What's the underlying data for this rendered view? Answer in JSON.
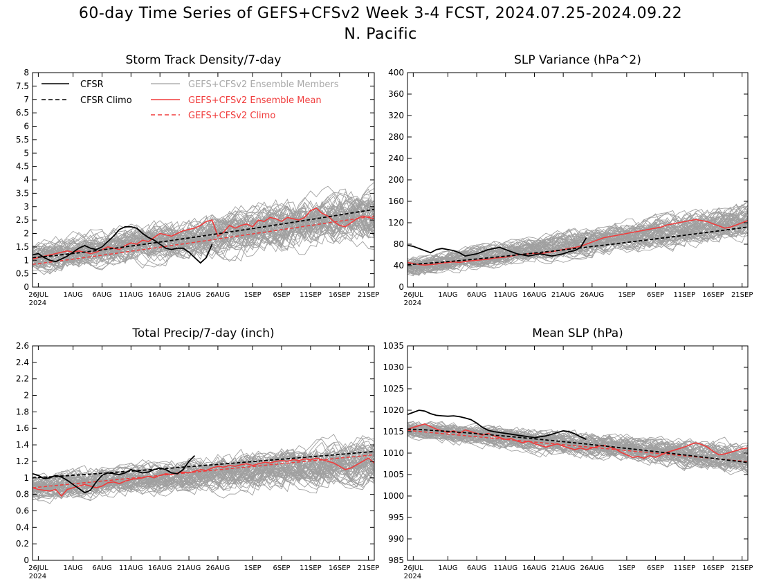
{
  "figure": {
    "title_line1": "60-day Time Series of GEFS+CFSv2 Week 3-4 FCST, 2024.07.25-2024.09.22",
    "title_line2": "N. Pacific"
  },
  "colors": {
    "cfsr": "#000000",
    "ensemble_members": "#a0a0a0",
    "ensemble_mean": "#f03c3c",
    "gefs_climo": "#f03c3c"
  },
  "legend": {
    "cfsr": "CFSR",
    "cfsr_climo": "CFSR Climo",
    "members": "GEFS+CFSv2 Ensemble Members",
    "mean": "GEFS+CFSv2 Ensemble Mean",
    "gefs_climo": "GEFS+CFSv2 Climo"
  },
  "x_axis": {
    "day_range": [
      0,
      59
    ],
    "ticks": [
      {
        "day": 1,
        "label": "26JUL",
        "sublabel": "2024"
      },
      {
        "day": 7,
        "label": "1AUG"
      },
      {
        "day": 12,
        "label": "6AUG"
      },
      {
        "day": 17,
        "label": "11AUG"
      },
      {
        "day": 22,
        "label": "16AUG"
      },
      {
        "day": 27,
        "label": "21AUG"
      },
      {
        "day": 32,
        "label": "26AUG"
      },
      {
        "day": 38,
        "label": "1SEP"
      },
      {
        "day": 43,
        "label": "6SEP"
      },
      {
        "day": 48,
        "label": "11SEP"
      },
      {
        "day": 53,
        "label": "16SEP"
      },
      {
        "day": 58,
        "label": "21SEP"
      }
    ]
  },
  "chart_data": [
    {
      "type": "line",
      "title": "Storm Track Density/7-day",
      "ylim": [
        0,
        8
      ],
      "yticks": [
        "0",
        "0.5",
        "1",
        "1.5",
        "2",
        "2.5",
        "3",
        "3.5",
        "4",
        "4.5",
        "5",
        "5.5",
        "6",
        "6.5",
        "7",
        "7.5",
        "8"
      ],
      "show_legend": true,
      "member_center": {
        "start": 1.1,
        "end": 2.7
      },
      "member_spread": 1.0,
      "cfsr": [
        1.2,
        1.25,
        1.1,
        1.0,
        0.95,
        1.05,
        1.15,
        1.3,
        1.45,
        1.55,
        1.45,
        1.4,
        1.5,
        1.7,
        1.9,
        2.15,
        2.25,
        2.25,
        2.2,
        2.0,
        1.85,
        1.75,
        1.6,
        1.45,
        1.4,
        1.45,
        1.45,
        1.3,
        1.1,
        0.9,
        1.1,
        1.6
      ],
      "cfsr_climo": {
        "start": 1.1,
        "end": 2.9,
        "power": 1.15
      },
      "ens_mean": [
        1.05,
        1.1,
        1.15,
        1.2,
        1.25,
        1.3,
        1.35,
        1.3,
        1.35,
        1.3,
        1.25,
        1.3,
        1.4,
        1.5,
        1.45,
        1.4,
        1.55,
        1.65,
        1.6,
        1.75,
        1.7,
        1.85,
        2.0,
        1.95,
        1.9,
        2.0,
        2.1,
        2.15,
        2.2,
        2.3,
        2.45,
        2.5,
        1.9,
        2.05,
        2.3,
        2.2,
        2.3,
        2.35,
        2.25,
        2.5,
        2.45,
        2.6,
        2.55,
        2.45,
        2.6,
        2.55,
        2.5,
        2.6,
        2.85,
        2.95,
        2.75,
        2.65,
        2.45,
        2.3,
        2.25,
        2.4,
        2.55,
        2.65,
        2.6,
        2.55
      ],
      "gefs_climo": {
        "start": 0.85,
        "end": 2.65,
        "power": 1.05
      }
    },
    {
      "type": "line",
      "title": "SLP Variance (hPa^2)",
      "ylim": [
        0,
        400
      ],
      "yticks": [
        "0",
        "40",
        "80",
        "120",
        "160",
        "200",
        "240",
        "280",
        "320",
        "360",
        "400"
      ],
      "show_legend": false,
      "member_center": {
        "start": 38,
        "end": 125
      },
      "member_spread": 30,
      "cfsr": [
        78,
        76,
        72,
        68,
        64,
        70,
        72,
        70,
        68,
        64,
        58,
        60,
        62,
        66,
        70,
        72,
        74,
        70,
        66,
        62,
        60,
        58,
        60,
        62,
        60,
        58,
        60,
        62,
        66,
        68,
        74,
        92
      ],
      "cfsr_climo": {
        "start": 42,
        "end": 112,
        "power": 1.2
      },
      "ens_mean": [
        46,
        44,
        42,
        41,
        42,
        43,
        45,
        46,
        47,
        46,
        48,
        49,
        50,
        51,
        52,
        54,
        55,
        56,
        58,
        60,
        61,
        62,
        63,
        62,
        64,
        66,
        68,
        70,
        72,
        74,
        76,
        80,
        84,
        88,
        92,
        94,
        96,
        98,
        100,
        102,
        104,
        106,
        108,
        110,
        112,
        116,
        118,
        120,
        122,
        124,
        126,
        124,
        122,
        118,
        114,
        110,
        112,
        116,
        120,
        124
      ]
    },
    {
      "type": "line",
      "title": "Total Precip/7-day (inch)",
      "ylim": [
        0,
        2.6
      ],
      "yticks": [
        "0",
        "0.2",
        "0.4",
        "0.6",
        "0.8",
        "1",
        "1.2",
        "1.4",
        "1.6",
        "1.8",
        "2",
        "2.2",
        "2.4",
        "2.6"
      ],
      "show_legend": false,
      "member_center": {
        "start": 0.88,
        "end": 1.22
      },
      "member_spread": 0.26,
      "cfsr": [
        1.05,
        1.03,
        0.99,
        1.0,
        1.03,
        1.01,
        0.97,
        0.92,
        0.87,
        0.82,
        0.85,
        0.95,
        1.03,
        1.06,
        1.05,
        1.04,
        1.06,
        1.1,
        1.08,
        1.06,
        1.07,
        1.1,
        1.12,
        1.1,
        1.06,
        1.05,
        1.1,
        1.2,
        1.27
      ],
      "cfsr_climo": {
        "start": 1.0,
        "end": 1.32,
        "power": 1.1
      },
      "ens_mean": [
        0.88,
        0.86,
        0.85,
        0.84,
        0.86,
        0.78,
        0.86,
        0.88,
        0.9,
        0.92,
        0.9,
        0.88,
        0.9,
        0.94,
        0.95,
        0.93,
        0.96,
        0.98,
        0.99,
        1.0,
        1.02,
        1.0,
        1.03,
        1.05,
        1.04,
        1.06,
        1.07,
        1.06,
        1.08,
        1.1,
        1.09,
        1.12,
        1.14,
        1.13,
        1.15,
        1.14,
        1.16,
        1.17,
        1.15,
        1.17,
        1.19,
        1.18,
        1.2,
        1.21,
        1.2,
        1.22,
        1.21,
        1.23,
        1.22,
        1.24,
        1.22,
        1.2,
        1.18,
        1.14,
        1.1,
        1.12,
        1.16,
        1.2,
        1.24,
        1.18
      ],
      "gefs_climo": {
        "start": 0.88,
        "end": 1.28,
        "power": 1.0
      }
    },
    {
      "type": "line",
      "title": "Mean SLP (hPa)",
      "ylim": [
        985,
        1035
      ],
      "yticks": [
        "985",
        "990",
        "995",
        "1000",
        "1005",
        "1010",
        "1015",
        "1020",
        "1025",
        "1030",
        "1035"
      ],
      "show_legend": false,
      "member_center": {
        "start": 1015.5,
        "end": 1008.5
      },
      "member_spread": 3.5,
      "cfsr": [
        1019.0,
        1019.5,
        1020.0,
        1019.8,
        1019.2,
        1018.8,
        1018.7,
        1018.6,
        1018.7,
        1018.5,
        1018.2,
        1017.8,
        1017.0,
        1016.0,
        1015.3,
        1015.0,
        1014.8,
        1014.6,
        1014.4,
        1014.2,
        1014.0,
        1013.8,
        1013.6,
        1013.8,
        1014.0,
        1014.4,
        1014.8,
        1015.2,
        1015.0,
        1014.5,
        1013.8,
        1013.2
      ],
      "cfsr_climo": {
        "start": 1015.6,
        "end": 1007.8,
        "power": 1.25
      },
      "ens_mean": [
        1015.5,
        1016.0,
        1016.4,
        1016.8,
        1016.2,
        1015.6,
        1015.2,
        1014.8,
        1015.2,
        1014.6,
        1015.4,
        1015.0,
        1014.6,
        1014.2,
        1014.6,
        1014.0,
        1013.6,
        1013.2,
        1013.4,
        1012.8,
        1012.4,
        1012.8,
        1012.2,
        1011.8,
        1011.4,
        1011.8,
        1012.2,
        1011.6,
        1011.2,
        1010.8,
        1011.2,
        1010.8,
        1011.2,
        1011.6,
        1011.8,
        1011.4,
        1011.0,
        1010.2,
        1009.6,
        1009.0,
        1009.2,
        1008.8,
        1009.4,
        1009.0,
        1009.6,
        1010.2,
        1010.6,
        1011.0,
        1011.4,
        1012.0,
        1012.4,
        1012.0,
        1011.4,
        1010.4,
        1009.6,
        1009.8,
        1010.2,
        1010.6,
        1011.0,
        1011.2
      ],
      "gefs_climo": {
        "start": 1015.3,
        "end": 1008.0,
        "power": 1.0
      }
    }
  ]
}
